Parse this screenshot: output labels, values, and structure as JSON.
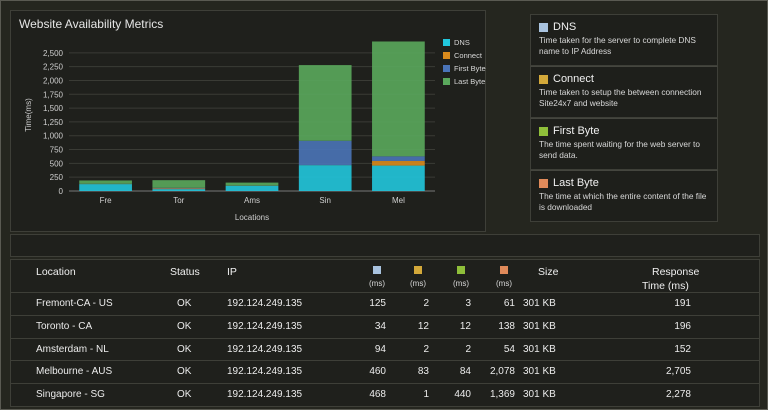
{
  "chart": {
    "title": "Website Availability Metrics",
    "ylabel": "Time(ms)",
    "xlabel": "Locations",
    "legend": [
      {
        "name": "DNS",
        "color": "#21c7dd"
      },
      {
        "name": "Connect",
        "color": "#d98a1c"
      },
      {
        "name": "First Byte",
        "color": "#4a74b8"
      },
      {
        "name": "Last Byte",
        "color": "#5aa85c"
      }
    ]
  },
  "chart_data": {
    "type": "bar",
    "stacked": true,
    "categories": [
      "Fre",
      "Tor",
      "Ams",
      "Sin",
      "Mel"
    ],
    "series": [
      {
        "name": "DNS",
        "values": [
          125,
          34,
          94,
          468,
          460
        ]
      },
      {
        "name": "Connect",
        "values": [
          2,
          12,
          2,
          1,
          83
        ]
      },
      {
        "name": "First Byte",
        "values": [
          3,
          12,
          2,
          440,
          84
        ]
      },
      {
        "name": "Last Byte",
        "values": [
          61,
          138,
          54,
          1369,
          2078
        ]
      }
    ],
    "yticks": [
      "0",
      "250",
      "500",
      "750",
      "1,000",
      "1,250",
      "1,500",
      "1,750",
      "2,000",
      "2,250",
      "2,500"
    ],
    "ylim": [
      0,
      2750
    ],
    "grid": true,
    "legend_position": "top-right"
  },
  "cards": [
    {
      "title": "DNS",
      "color": "#a9c3df",
      "desc": "Time taken for the server to complete DNS name to IP Address"
    },
    {
      "title": "Connect",
      "color": "#d4a93a",
      "desc": "Time taken to setup the between connection Site24x7 and website"
    },
    {
      "title": "First Byte",
      "color": "#8fbf3a",
      "desc": "The time spent waiting for the web server to send data."
    },
    {
      "title": "Last Byte",
      "color": "#e08a5a",
      "desc": "The time at which the entire content of the file is downloaded"
    }
  ],
  "table": {
    "headers": {
      "location": "Location",
      "status": "Status",
      "ip": "IP",
      "ms": "(ms)",
      "size": "Size",
      "response": "Response",
      "response_unit": "Time (ms)"
    },
    "header_swatches": [
      "#a9c3df",
      "#d4a93a",
      "#8fbf3a",
      "#e08a5a"
    ],
    "rows": [
      {
        "location": "Fremont-CA - US",
        "status": "OK",
        "ip": "192.124.249.135",
        "dns": "125",
        "connect": "2",
        "first": "3",
        "last": "61",
        "size": "301 KB",
        "response": "191"
      },
      {
        "location": "Toronto - CA",
        "status": "OK",
        "ip": "192.124.249.135",
        "dns": "34",
        "connect": "12",
        "first": "12",
        "last": "138",
        "size": "301 KB",
        "response": "196"
      },
      {
        "location": "Amsterdam - NL",
        "status": "OK",
        "ip": "192.124.249.135",
        "dns": "94",
        "connect": "2",
        "first": "2",
        "last": "54",
        "size": "301 KB",
        "response": "152"
      },
      {
        "location": "Melbourne - AUS",
        "status": "OK",
        "ip": "192.124.249.135",
        "dns": "460",
        "connect": "83",
        "first": "84",
        "last": "2,078",
        "size": "301 KB",
        "response": "2,705"
      },
      {
        "location": "Singapore - SG",
        "status": "OK",
        "ip": "192.124.249.135",
        "dns": "468",
        "connect": "1",
        "first": "440",
        "last": "1,369",
        "size": "301 KB",
        "response": "2,278"
      }
    ]
  }
}
